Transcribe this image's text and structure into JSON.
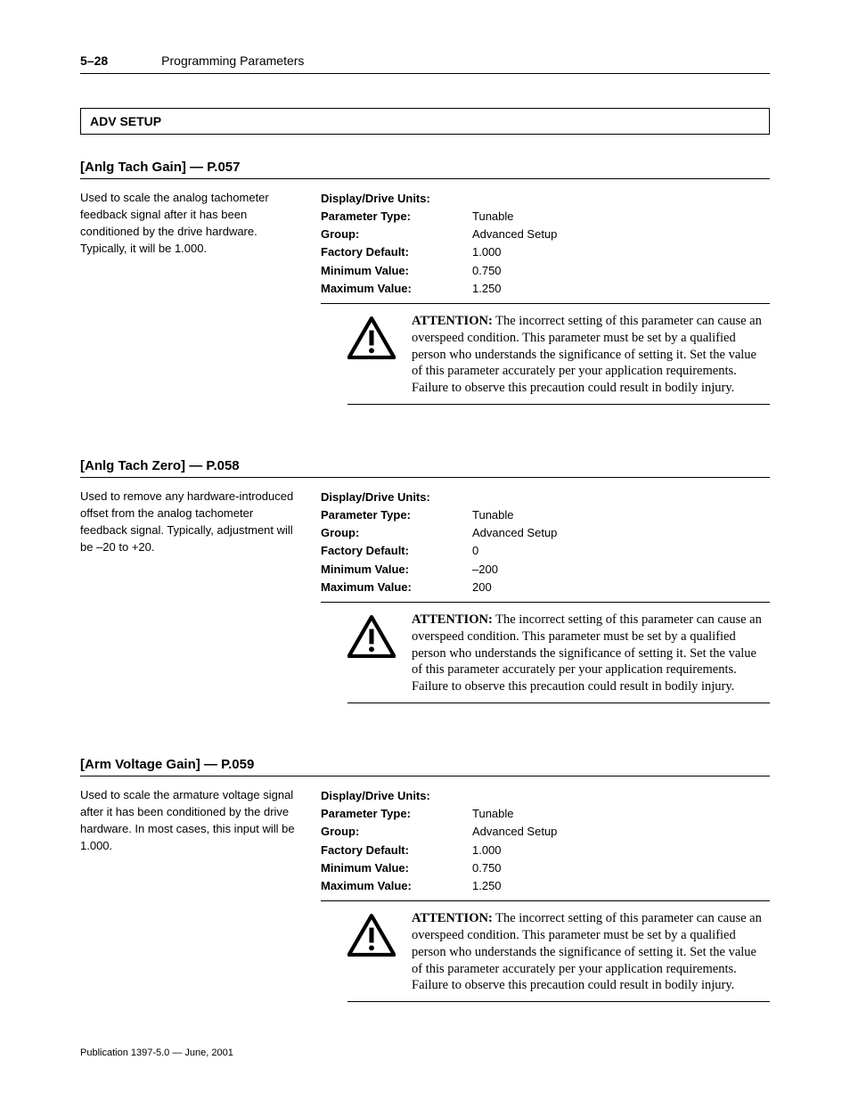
{
  "header": {
    "page_number": "5–28",
    "chapter_title": "Programming Parameters"
  },
  "section_bar": "ADV SETUP",
  "property_labels": {
    "display_units": "Display/Drive Units:",
    "param_type": "Parameter Type:",
    "group": "Group:",
    "factory_default": "Factory Default:",
    "min_value": "Minimum Value:",
    "max_value": "Maximum Value:"
  },
  "attention_lead": "ATTENTION:",
  "attention_body": " The incorrect setting of this parameter can cause an overspeed condition. This parameter must be set by a qualified person who understands the significance of setting it. Set the value of this parameter accurately per your application requirements. Failure to observe this precaution could result in bodily injury.",
  "params": [
    {
      "title": "[Anlg Tach Gain]   —   P.057",
      "description": "Used to scale the analog tachometer feedback signal after it has been conditioned by the drive hardware. Typically, it will be 1.000.",
      "display_units": "",
      "param_type": "Tunable",
      "group": "Advanced Setup",
      "factory_default": "1.000",
      "min_value": "0.750",
      "max_value": "1.250"
    },
    {
      "title": "[Anlg Tach Zero]   —   P.058",
      "description": "Used to remove any hardware-introduced offset from the analog tachometer feedback signal.  Typically, adjustment will be –20 to +20.",
      "display_units": "",
      "param_type": "Tunable",
      "group": "Advanced Setup",
      "factory_default": "0",
      "min_value": "–200",
      "max_value": "200"
    },
    {
      "title": "[Arm Voltage Gain]   —   P.059",
      "description": "Used to scale the armature voltage signal after it has been conditioned by the drive hardware. In most cases, this input will be 1.000.",
      "display_units": "",
      "param_type": "Tunable",
      "group": "Advanced Setup",
      "factory_default": "1.000",
      "min_value": "0.750",
      "max_value": "1.250"
    }
  ],
  "footer": "Publication 1397-5.0  —  June, 2001",
  "colors": {
    "text": "#000000",
    "background": "#ffffff",
    "rule": "#000000"
  }
}
